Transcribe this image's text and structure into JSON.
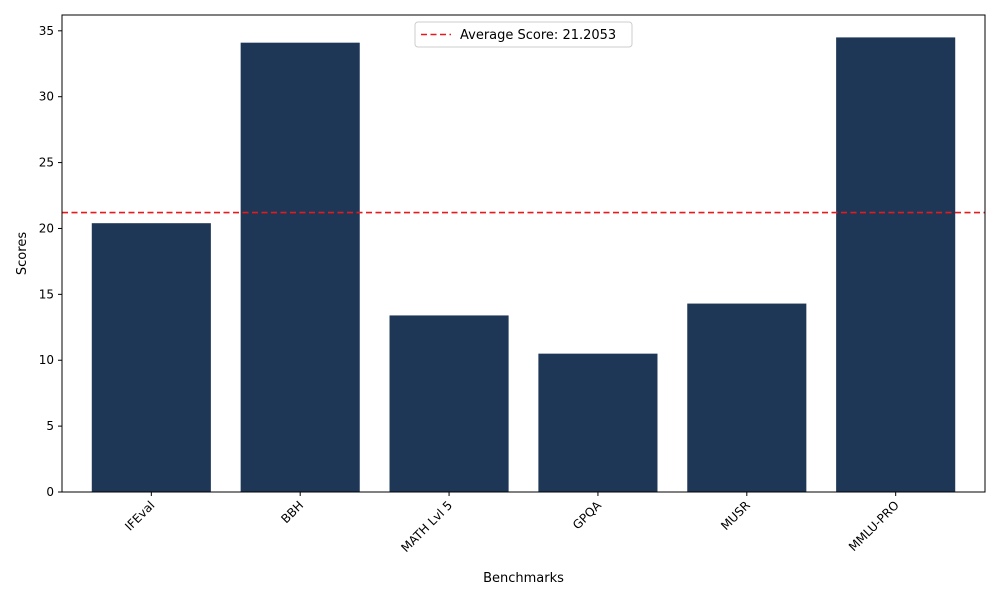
{
  "chart_data": {
    "type": "bar",
    "title": "",
    "xlabel": "Benchmarks",
    "ylabel": "Scores",
    "categories": [
      "IFEval",
      "BBH",
      "MATH Lvl 5",
      "GPQA",
      "MUSR",
      "MMLU-PRO"
    ],
    "values": [
      20.4,
      34.1,
      13.4,
      10.5,
      14.3,
      34.5
    ],
    "ylim": [
      0,
      36.2
    ],
    "yticks": [
      0,
      5,
      10,
      15,
      20,
      25,
      30,
      35
    ],
    "bar_color": "#1f3757",
    "reference_line": {
      "label": "Average Score: 21.2053",
      "value": 21.2053,
      "color": "#e41a1c",
      "style": "dashed"
    },
    "legend_position": "top-center",
    "grid": false
  }
}
